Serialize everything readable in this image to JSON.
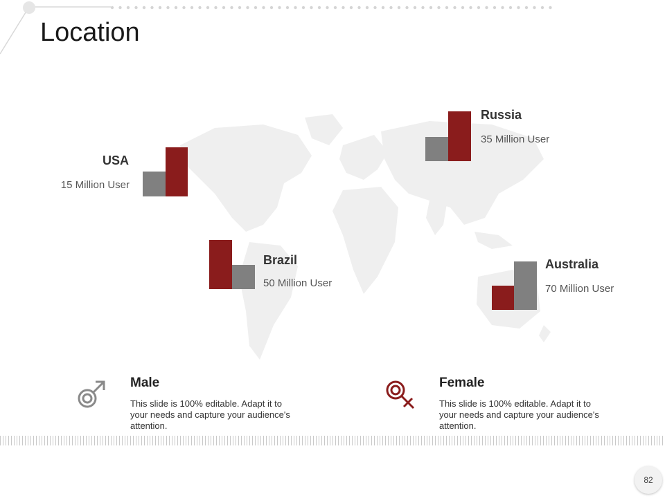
{
  "slide": {
    "title": "Location",
    "page_number": "82"
  },
  "colors": {
    "accent": "#8a1c1c",
    "gray": "#808080",
    "map": "#eeeeee"
  },
  "locations": [
    {
      "name": "USA",
      "users": "15 Million User"
    },
    {
      "name": "Russia",
      "users": "35 Million User"
    },
    {
      "name": "Brazil",
      "users": "50 Million User"
    },
    {
      "name": "Australia",
      "users": "70 Million User"
    }
  ],
  "gender": [
    {
      "title": "Male",
      "icon": "male-symbol-icon",
      "description": "This slide is 100% editable. Adapt it to your needs and capture your audience's attention."
    },
    {
      "title": "Female",
      "icon": "female-symbol-icon",
      "description": "This slide is 100% editable. Adapt it to your needs and capture your audience's attention."
    }
  ]
}
